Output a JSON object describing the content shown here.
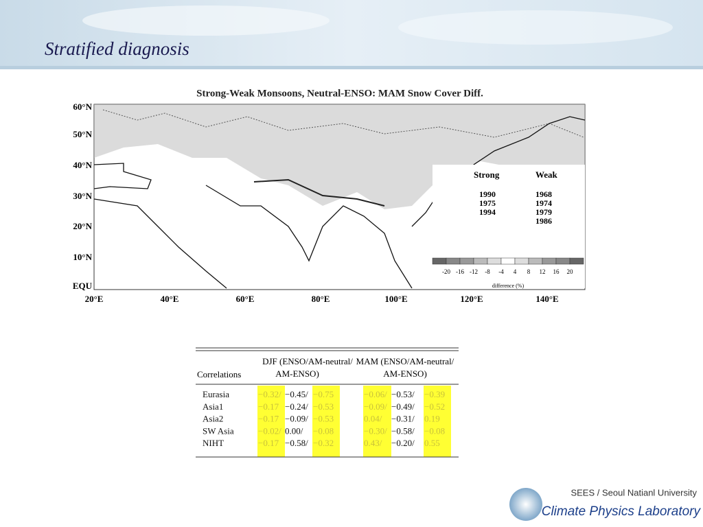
{
  "header": {
    "title": "Stratified  diagnosis"
  },
  "figure": {
    "title": "Strong-Weak Monsoons, Neutral-ENSO: MAM Snow Cover Diff.",
    "lat_labels": [
      "60°N",
      "50°N",
      "40°N",
      "30°N",
      "20°N",
      "10°N",
      "EQU"
    ],
    "lon_labels": [
      "20°E",
      "40°E",
      "60°E",
      "80°E",
      "100°E",
      "120°E",
      "140°E"
    ],
    "strong": {
      "label": "Strong",
      "years": [
        "1990",
        "1975",
        "1994"
      ]
    },
    "weak": {
      "label": "Weak",
      "years": [
        "1968",
        "1974",
        "1979",
        "1986"
      ]
    },
    "colorbar": {
      "labels": [
        "-20",
        "-16",
        "-12",
        "-8",
        "-4",
        "4",
        "8",
        "12",
        "16",
        "20"
      ],
      "caption": "difference (%)"
    }
  },
  "table": {
    "corner": "Correlations",
    "djf_header": [
      "DJF (ENSO/AM-neutral/",
      "AM-ENSO)"
    ],
    "mam_header": [
      "MAM (ENSO/AM-neutral/",
      "AM-ENSO)"
    ],
    "rows": [
      [
        "Eurasia",
        "−0.32/",
        "−0.45/",
        "−0.75",
        "−0.06/",
        "−0.53/",
        "−0.39"
      ],
      [
        "Asia1",
        "−0.17",
        "−0.24/",
        "−0.53",
        "−0.09/",
        "−0.49/",
        "−0.52"
      ],
      [
        "Asia2",
        "−0.17",
        "−0.09/",
        "−0.53",
        "0.04/",
        "−0.31/",
        "0.19"
      ],
      [
        "SW Asia",
        "−0.02/",
        "0.00/",
        "−0.08",
        "−0.30/",
        "−0.58/",
        "−0.08"
      ],
      [
        "NIHT",
        "−0.17",
        "−0.58/",
        "−0.32",
        "0.43/",
        "−0.20/",
        "0.55"
      ]
    ]
  },
  "footer": {
    "institution": "SEES / Seoul Natianl University",
    "lab": "Climate Physics Laboratory"
  }
}
